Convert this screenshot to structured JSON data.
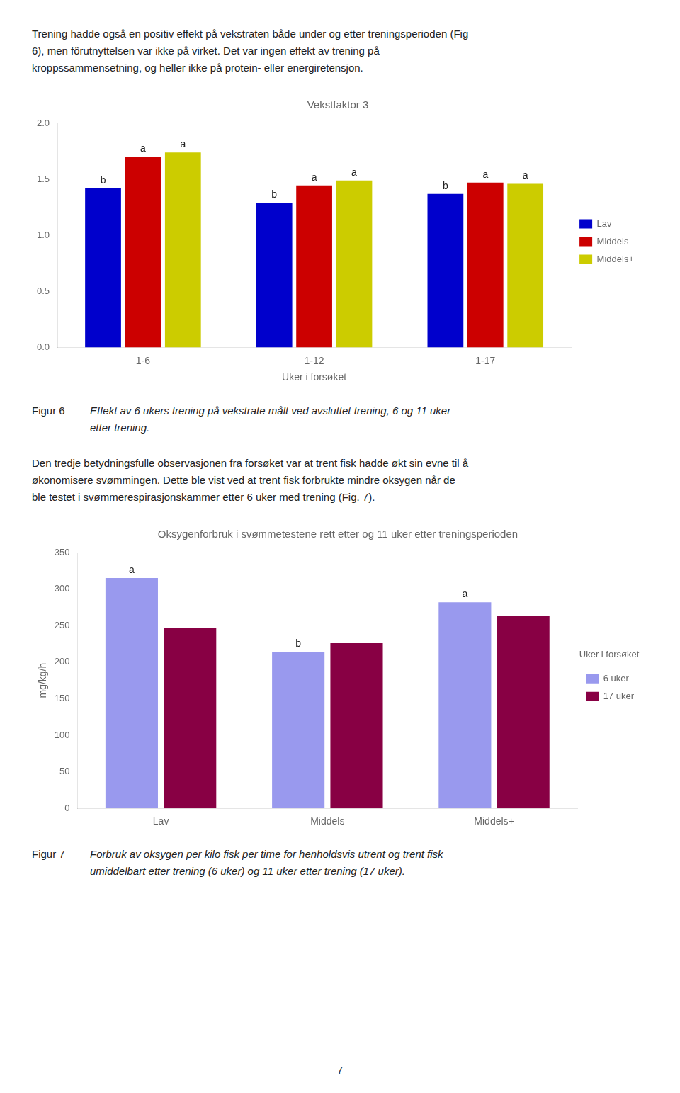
{
  "text_top_lines": [
    "Trening hadde også en positiv effekt på vekstraten både under og etter treningsperioden (Fig",
    "6), men fôrutnyttelsen var ikke på virket.  Det var ingen effekt av trening på",
    "kroppssammensetning, og heller ikke på protein- eller energiretensjon."
  ],
  "chart_data": [
    {
      "type": "bar",
      "title": "Vekstfaktor 3",
      "xlabel": "Uker i forsøket",
      "categories": [
        "1-6",
        "1-12",
        "1-17"
      ],
      "series": [
        {
          "name": "Lav",
          "color": "#0000cc",
          "values": [
            1.42,
            1.29,
            1.37
          ],
          "value_labels": [
            "b",
            "b",
            "b"
          ]
        },
        {
          "name": "Middels",
          "color": "#cc0000",
          "values": [
            1.7,
            1.445,
            1.47
          ],
          "value_labels": [
            "a",
            "a",
            "a"
          ]
        },
        {
          "name": "Middels+",
          "color": "#cccc00",
          "values": [
            1.74,
            1.49,
            1.46
          ],
          "value_labels": [
            "a",
            "a",
            "a"
          ]
        }
      ],
      "ylim": [
        0.0,
        2.0
      ],
      "yticks": [
        {
          "value": 0,
          "label": "0.0"
        },
        {
          "value": 0.5,
          "label": "0.5"
        },
        {
          "value": 1,
          "label": "1.0"
        },
        {
          "value": 1.5,
          "label": "1.5"
        },
        {
          "value": 2,
          "label": "2.0"
        }
      ],
      "grid": false,
      "legend": "right"
    },
    {
      "type": "bar",
      "title": "Oksygenforbruk i svømmetestene rett etter og 11 uker etter treningsperioden",
      "ylabel": "mg/kg/h",
      "categories": [
        "Lav",
        "Middels",
        "Middels+"
      ],
      "series": [
        {
          "name": "6 uker",
          "color": "#9999ee",
          "values": [
            315,
            214,
            282
          ],
          "value_labels": [
            "a",
            "b",
            "a"
          ]
        },
        {
          "name": "17 uker",
          "color": "#880044",
          "values": [
            247,
            226,
            263
          ]
        }
      ],
      "ylim": [
        0,
        350
      ],
      "yticks": [
        0,
        50,
        100,
        150,
        200,
        250,
        300,
        350
      ],
      "grid": false,
      "legend": "right",
      "legend_title": "Uker i forsøket"
    }
  ],
  "figur6_label": "Figur 6",
  "figur6_lines": [
    "Effekt av 6 ukers trening på vekstrate målt ved avsluttet trening, 6 og 11 uker",
    "etter trening."
  ],
  "body_text_lines": [
    "Den tredje betydningsfulle observasjonen fra forsøket var at trent fisk hadde økt sin evne til å",
    "økonomisere svømmingen.  Dette ble vist ved at trent fisk forbrukte mindre oksygen når de",
    "ble testet i svømmerespirasjonskammer etter 6 uker med trening (Fig. 7)."
  ],
  "figur7_label": "Figur 7",
  "figur7_lines": [
    "Forbruk av oksygen per kilo fisk per time for henholdsvis utrent og trent fisk",
    "umiddelbart etter trening (6 uker) og 11 uker etter trening (17 uker)."
  ],
  "page_number": "7"
}
